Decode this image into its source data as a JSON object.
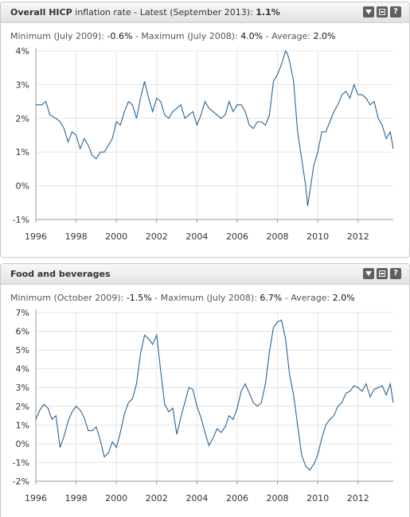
{
  "panels": [
    {
      "title_bold": "Overall HICP",
      "title_rest": " inflation rate - Latest (September 2013): ",
      "title_value": "1.1%",
      "stats": {
        "min_label": "Minimum (July 2009): ",
        "min_value": "-0.6%",
        "max_label": " - Maximum (July 2008): ",
        "max_value": "4.0%",
        "avg_label": " - Average: ",
        "avg_value": "2.0%"
      }
    },
    {
      "title_bold": "Food and beverages",
      "stats": {
        "min_label": "Minimum (October 2009): ",
        "min_value": "-1.5%",
        "max_label": " - Maximum (July 2008): ",
        "max_value": "6.7%",
        "avg_label": " - Average: ",
        "avg_value": "2.0%"
      }
    }
  ],
  "chart_data": [
    {
      "type": "line",
      "title": "Overall HICP inflation rate - Latest (September 2013): 1.1%",
      "xlabel": "",
      "ylabel": "",
      "xlim": [
        1996,
        2013.75
      ],
      "ylim": [
        -1,
        4
      ],
      "xticks": [
        "1996",
        "1998",
        "2000",
        "2002",
        "2004",
        "2006",
        "2008",
        "2010",
        "2012"
      ],
      "yticks": [
        "4%",
        "3%",
        "2%",
        "1%",
        "0%",
        "-1%"
      ],
      "grid": true,
      "line_color": "#2a6496",
      "x": [
        1996.0,
        1996.3,
        1996.5,
        1996.7,
        1997.0,
        1997.2,
        1997.4,
        1997.6,
        1997.8,
        1998.0,
        1998.2,
        1998.4,
        1998.6,
        1998.8,
        1999.0,
        1999.2,
        1999.4,
        1999.6,
        1999.8,
        2000.0,
        2000.2,
        2000.4,
        2000.6,
        2000.8,
        2001.0,
        2001.2,
        2001.4,
        2001.6,
        2001.8,
        2002.0,
        2002.2,
        2002.4,
        2002.6,
        2002.8,
        2003.0,
        2003.2,
        2003.4,
        2003.6,
        2003.8,
        2004.0,
        2004.2,
        2004.4,
        2004.6,
        2004.8,
        2005.0,
        2005.2,
        2005.4,
        2005.6,
        2005.8,
        2006.0,
        2006.2,
        2006.4,
        2006.6,
        2006.8,
        2007.0,
        2007.2,
        2007.4,
        2007.6,
        2007.8,
        2008.0,
        2008.2,
        2008.4,
        2008.5,
        2008.6,
        2008.8,
        2009.0,
        2009.2,
        2009.4,
        2009.5,
        2009.6,
        2009.8,
        2010.0,
        2010.2,
        2010.4,
        2010.6,
        2010.8,
        2011.0,
        2011.2,
        2011.4,
        2011.6,
        2011.8,
        2012.0,
        2012.2,
        2012.4,
        2012.6,
        2012.8,
        2013.0,
        2013.2,
        2013.4,
        2013.6,
        2013.75
      ],
      "values": [
        2.4,
        2.4,
        2.5,
        2.1,
        2.0,
        1.9,
        1.7,
        1.3,
        1.6,
        1.5,
        1.1,
        1.4,
        1.2,
        0.9,
        0.8,
        1.0,
        1.0,
        1.2,
        1.4,
        1.9,
        1.8,
        2.2,
        2.5,
        2.4,
        2.0,
        2.6,
        3.1,
        2.6,
        2.2,
        2.6,
        2.5,
        2.1,
        2.0,
        2.2,
        2.3,
        2.4,
        2.0,
        2.1,
        2.2,
        1.8,
        2.1,
        2.5,
        2.3,
        2.2,
        2.1,
        2.0,
        2.1,
        2.5,
        2.2,
        2.4,
        2.4,
        2.2,
        1.8,
        1.7,
        1.9,
        1.9,
        1.8,
        2.1,
        3.1,
        3.3,
        3.6,
        4.0,
        3.9,
        3.7,
        3.1,
        1.6,
        0.8,
        0.0,
        -0.6,
        -0.2,
        0.6,
        1.0,
        1.6,
        1.6,
        1.9,
        2.2,
        2.4,
        2.7,
        2.8,
        2.6,
        3.0,
        2.7,
        2.7,
        2.6,
        2.4,
        2.5,
        2.0,
        1.8,
        1.4,
        1.6,
        1.1
      ]
    },
    {
      "type": "line",
      "title": "Food and beverages",
      "xlabel": "",
      "ylabel": "",
      "xlim": [
        1996,
        2013.75
      ],
      "ylim": [
        -2,
        7
      ],
      "xticks": [
        "1996",
        "1998",
        "2000",
        "2002",
        "2004",
        "2006",
        "2008",
        "2010",
        "2012"
      ],
      "yticks": [
        "7%",
        "6%",
        "5%",
        "4%",
        "3%",
        "2%",
        "1%",
        "0%",
        "-1%",
        "-2%"
      ],
      "grid": true,
      "line_color": "#2a6496",
      "x": [
        1996.0,
        1996.2,
        1996.4,
        1996.6,
        1996.8,
        1997.0,
        1997.2,
        1997.4,
        1997.6,
        1997.8,
        1998.0,
        1998.2,
        1998.4,
        1998.6,
        1998.8,
        1999.0,
        1999.2,
        1999.4,
        1999.6,
        1999.8,
        2000.0,
        2000.2,
        2000.4,
        2000.6,
        2000.8,
        2001.0,
        2001.2,
        2001.4,
        2001.6,
        2001.8,
        2002.0,
        2002.2,
        2002.4,
        2002.6,
        2002.8,
        2003.0,
        2003.2,
        2003.4,
        2003.6,
        2003.8,
        2004.0,
        2004.2,
        2004.4,
        2004.6,
        2004.8,
        2005.0,
        2005.2,
        2005.4,
        2005.6,
        2005.8,
        2006.0,
        2006.2,
        2006.4,
        2006.6,
        2006.8,
        2007.0,
        2007.2,
        2007.4,
        2007.6,
        2007.8,
        2008.0,
        2008.2,
        2008.4,
        2008.6,
        2008.8,
        2009.0,
        2009.2,
        2009.4,
        2009.6,
        2009.8,
        2010.0,
        2010.2,
        2010.4,
        2010.6,
        2010.8,
        2011.0,
        2011.2,
        2011.4,
        2011.6,
        2011.8,
        2012.0,
        2012.2,
        2012.4,
        2012.6,
        2012.8,
        2013.0,
        2013.2,
        2013.4,
        2013.6,
        2013.75
      ],
      "values": [
        1.3,
        1.8,
        2.1,
        1.9,
        1.3,
        1.5,
        -0.2,
        0.4,
        1.2,
        1.7,
        2.0,
        1.8,
        1.4,
        0.7,
        0.7,
        0.9,
        0.2,
        -0.7,
        -0.5,
        0.1,
        -0.2,
        0.6,
        1.6,
        2.2,
        2.4,
        3.2,
        4.8,
        5.8,
        5.6,
        5.3,
        5.8,
        3.9,
        2.1,
        1.7,
        1.9,
        0.5,
        1.4,
        2.2,
        3.0,
        2.9,
        2.0,
        1.4,
        0.6,
        -0.1,
        0.3,
        0.8,
        0.6,
        0.9,
        1.5,
        1.3,
        1.9,
        2.8,
        3.2,
        2.7,
        2.2,
        2.0,
        2.2,
        3.2,
        4.9,
        6.2,
        6.5,
        6.6,
        5.6,
        3.7,
        2.6,
        1.0,
        -0.6,
        -1.2,
        -1.4,
        -1.1,
        -0.6,
        0.3,
        1.0,
        1.3,
        1.5,
        2.0,
        2.2,
        2.7,
        2.8,
        3.1,
        3.0,
        2.8,
        3.2,
        2.5,
        2.9,
        3.0,
        3.1,
        2.6,
        3.2,
        2.2
      ]
    }
  ]
}
